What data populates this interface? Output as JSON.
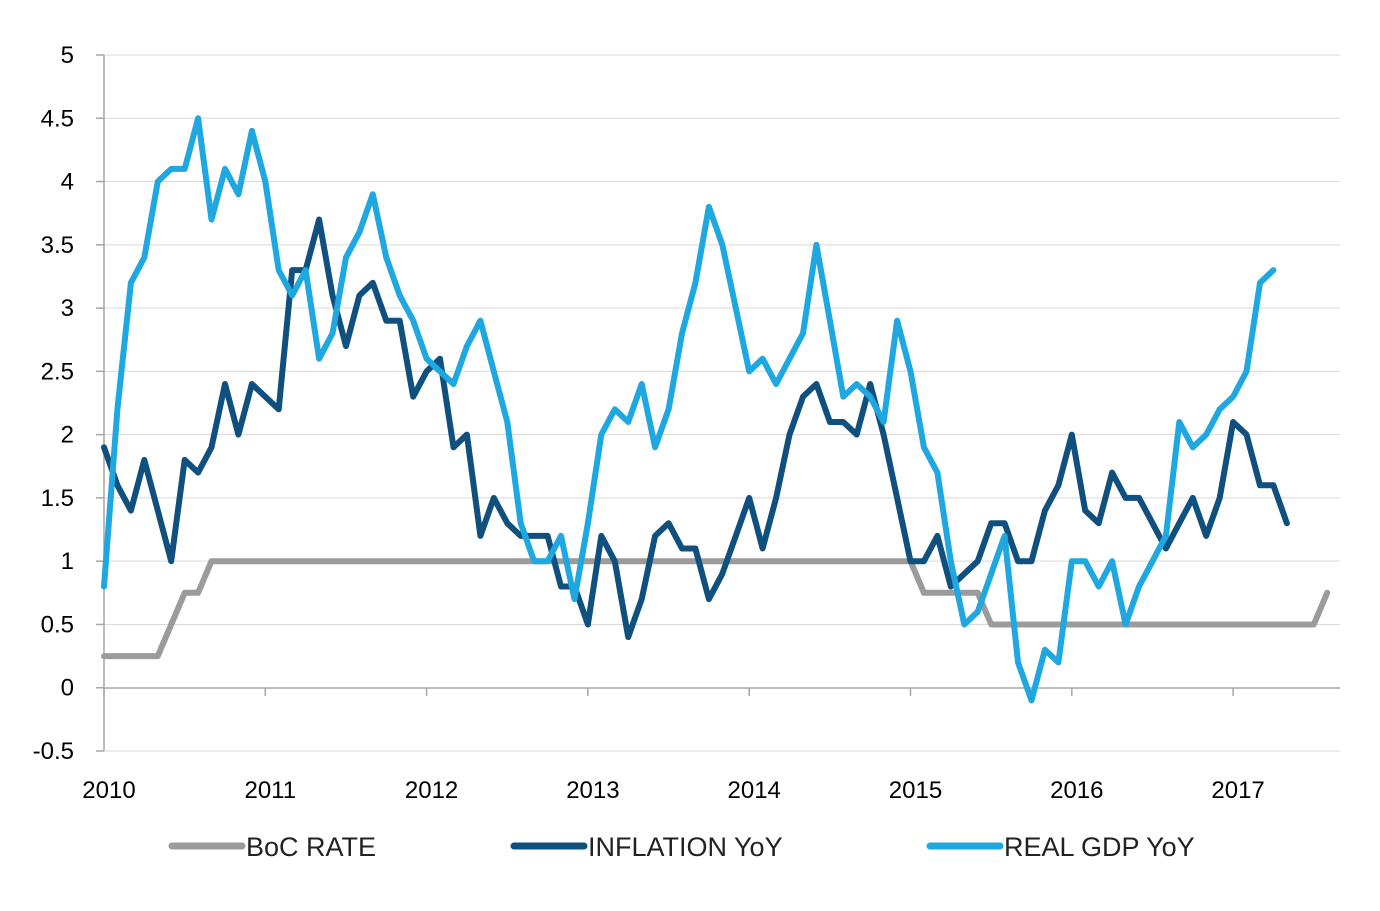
{
  "chart_data": {
    "type": "line",
    "title": "",
    "xlabel": "",
    "ylabel": "",
    "ylim": [
      -0.5,
      5
    ],
    "yticks": [
      "5",
      "4.5",
      "4",
      "3.5",
      "3",
      "2.5",
      "2",
      "1.5",
      "1",
      "0.5",
      "0",
      "-0.5"
    ],
    "xticks": [
      "2010",
      "2011",
      "2012",
      "2013",
      "2014",
      "2015",
      "2016",
      "2017"
    ],
    "grid": "horizontal",
    "legend_position": "bottom",
    "series": [
      {
        "name": "BoC RATE",
        "color": "#9b9b9b",
        "points": [
          [
            "2010-01",
            0.25
          ],
          [
            "2010-02",
            0.25
          ],
          [
            "2010-03",
            0.25
          ],
          [
            "2010-04",
            0.25
          ],
          [
            "2010-05",
            0.25
          ],
          [
            "2010-06",
            0.5
          ],
          [
            "2010-07",
            0.75
          ],
          [
            "2010-08",
            0.75
          ],
          [
            "2010-09",
            1.0
          ],
          [
            "2010-10",
            1.0
          ],
          [
            "2010-11",
            1.0
          ],
          [
            "2010-12",
            1.0
          ],
          [
            "2011-01",
            1.0
          ],
          [
            "2011-06",
            1.0
          ],
          [
            "2012-01",
            1.0
          ],
          [
            "2012-06",
            1.0
          ],
          [
            "2013-01",
            1.0
          ],
          [
            "2013-06",
            1.0
          ],
          [
            "2014-01",
            1.0
          ],
          [
            "2014-06",
            1.0
          ],
          [
            "2014-12",
            1.0
          ],
          [
            "2015-01",
            1.0
          ],
          [
            "2015-02",
            0.75
          ],
          [
            "2015-03",
            0.75
          ],
          [
            "2015-04",
            0.75
          ],
          [
            "2015-05",
            0.75
          ],
          [
            "2015-06",
            0.75
          ],
          [
            "2015-07",
            0.5
          ],
          [
            "2015-08",
            0.5
          ],
          [
            "2015-12",
            0.5
          ],
          [
            "2016-06",
            0.5
          ],
          [
            "2016-12",
            0.5
          ],
          [
            "2017-01",
            0.5
          ],
          [
            "2017-06",
            0.5
          ],
          [
            "2017-07",
            0.5
          ],
          [
            "2017-08",
            0.75
          ]
        ]
      },
      {
        "name": "INFLATION YoY",
        "color": "#10507f",
        "points": [
          [
            "2010-01",
            1.9
          ],
          [
            "2010-02",
            1.6
          ],
          [
            "2010-03",
            1.4
          ],
          [
            "2010-04",
            1.8
          ],
          [
            "2010-05",
            1.4
          ],
          [
            "2010-06",
            1.0
          ],
          [
            "2010-07",
            1.8
          ],
          [
            "2010-08",
            1.7
          ],
          [
            "2010-09",
            1.9
          ],
          [
            "2010-10",
            2.4
          ],
          [
            "2010-11",
            2.0
          ],
          [
            "2010-12",
            2.4
          ],
          [
            "2011-01",
            2.3
          ],
          [
            "2011-02",
            2.2
          ],
          [
            "2011-03",
            3.3
          ],
          [
            "2011-04",
            3.3
          ],
          [
            "2011-05",
            3.7
          ],
          [
            "2011-06",
            3.1
          ],
          [
            "2011-07",
            2.7
          ],
          [
            "2011-08",
            3.1
          ],
          [
            "2011-09",
            3.2
          ],
          [
            "2011-10",
            2.9
          ],
          [
            "2011-11",
            2.9
          ],
          [
            "2011-12",
            2.3
          ],
          [
            "2012-01",
            2.5
          ],
          [
            "2012-02",
            2.6
          ],
          [
            "2012-03",
            1.9
          ],
          [
            "2012-04",
            2.0
          ],
          [
            "2012-05",
            1.2
          ],
          [
            "2012-06",
            1.5
          ],
          [
            "2012-07",
            1.3
          ],
          [
            "2012-08",
            1.2
          ],
          [
            "2012-09",
            1.2
          ],
          [
            "2012-10",
            1.2
          ],
          [
            "2012-11",
            0.8
          ],
          [
            "2012-12",
            0.8
          ],
          [
            "2013-01",
            0.5
          ],
          [
            "2013-02",
            1.2
          ],
          [
            "2013-03",
            1.0
          ],
          [
            "2013-04",
            0.4
          ],
          [
            "2013-05",
            0.7
          ],
          [
            "2013-06",
            1.2
          ],
          [
            "2013-07",
            1.3
          ],
          [
            "2013-08",
            1.1
          ],
          [
            "2013-09",
            1.1
          ],
          [
            "2013-10",
            0.7
          ],
          [
            "2013-11",
            0.9
          ],
          [
            "2013-12",
            1.2
          ],
          [
            "2014-01",
            1.5
          ],
          [
            "2014-02",
            1.1
          ],
          [
            "2014-03",
            1.5
          ],
          [
            "2014-04",
            2.0
          ],
          [
            "2014-05",
            2.3
          ],
          [
            "2014-06",
            2.4
          ],
          [
            "2014-07",
            2.1
          ],
          [
            "2014-08",
            2.1
          ],
          [
            "2014-09",
            2.0
          ],
          [
            "2014-10",
            2.4
          ],
          [
            "2014-11",
            2.0
          ],
          [
            "2014-12",
            1.5
          ],
          [
            "2015-01",
            1.0
          ],
          [
            "2015-02",
            1.0
          ],
          [
            "2015-03",
            1.2
          ],
          [
            "2015-04",
            0.8
          ],
          [
            "2015-05",
            0.9
          ],
          [
            "2015-06",
            1.0
          ],
          [
            "2015-07",
            1.3
          ],
          [
            "2015-08",
            1.3
          ],
          [
            "2015-09",
            1.0
          ],
          [
            "2015-10",
            1.0
          ],
          [
            "2015-11",
            1.4
          ],
          [
            "2015-12",
            1.6
          ],
          [
            "2016-01",
            2.0
          ],
          [
            "2016-02",
            1.4
          ],
          [
            "2016-03",
            1.3
          ],
          [
            "2016-04",
            1.7
          ],
          [
            "2016-05",
            1.5
          ],
          [
            "2016-06",
            1.5
          ],
          [
            "2016-07",
            1.3
          ],
          [
            "2016-08",
            1.1
          ],
          [
            "2016-09",
            1.3
          ],
          [
            "2016-10",
            1.5
          ],
          [
            "2016-11",
            1.2
          ],
          [
            "2016-12",
            1.5
          ],
          [
            "2017-01",
            2.1
          ],
          [
            "2017-02",
            2.0
          ],
          [
            "2017-03",
            1.6
          ],
          [
            "2017-04",
            1.6
          ],
          [
            "2017-05",
            1.3
          ]
        ]
      },
      {
        "name": "REAL GDP YoY",
        "color": "#1ea7e1",
        "points": [
          [
            "2010-01",
            0.8
          ],
          [
            "2010-02",
            2.2
          ],
          [
            "2010-03",
            3.2
          ],
          [
            "2010-04",
            3.4
          ],
          [
            "2010-05",
            4.0
          ],
          [
            "2010-06",
            4.1
          ],
          [
            "2010-07",
            4.1
          ],
          [
            "2010-08",
            4.5
          ],
          [
            "2010-09",
            3.7
          ],
          [
            "2010-10",
            4.1
          ],
          [
            "2010-11",
            3.9
          ],
          [
            "2010-12",
            4.4
          ],
          [
            "2011-01",
            4.0
          ],
          [
            "2011-02",
            3.3
          ],
          [
            "2011-03",
            3.1
          ],
          [
            "2011-04",
            3.3
          ],
          [
            "2011-05",
            2.6
          ],
          [
            "2011-06",
            2.8
          ],
          [
            "2011-07",
            3.4
          ],
          [
            "2011-08",
            3.6
          ],
          [
            "2011-09",
            3.9
          ],
          [
            "2011-10",
            3.4
          ],
          [
            "2011-11",
            3.1
          ],
          [
            "2011-12",
            2.9
          ],
          [
            "2012-01",
            2.6
          ],
          [
            "2012-02",
            2.5
          ],
          [
            "2012-03",
            2.4
          ],
          [
            "2012-04",
            2.7
          ],
          [
            "2012-05",
            2.9
          ],
          [
            "2012-06",
            2.5
          ],
          [
            "2012-07",
            2.1
          ],
          [
            "2012-08",
            1.3
          ],
          [
            "2012-09",
            1.0
          ],
          [
            "2012-10",
            1.0
          ],
          [
            "2012-11",
            1.2
          ],
          [
            "2012-12",
            0.7
          ],
          [
            "2013-01",
            1.3
          ],
          [
            "2013-02",
            2.0
          ],
          [
            "2013-03",
            2.2
          ],
          [
            "2013-04",
            2.1
          ],
          [
            "2013-05",
            2.4
          ],
          [
            "2013-06",
            1.9
          ],
          [
            "2013-07",
            2.2
          ],
          [
            "2013-08",
            2.8
          ],
          [
            "2013-09",
            3.2
          ],
          [
            "2013-10",
            3.8
          ],
          [
            "2013-11",
            3.5
          ],
          [
            "2013-12",
            3.0
          ],
          [
            "2014-01",
            2.5
          ],
          [
            "2014-02",
            2.6
          ],
          [
            "2014-03",
            2.4
          ],
          [
            "2014-04",
            2.6
          ],
          [
            "2014-05",
            2.8
          ],
          [
            "2014-06",
            3.5
          ],
          [
            "2014-07",
            2.9
          ],
          [
            "2014-08",
            2.3
          ],
          [
            "2014-09",
            2.4
          ],
          [
            "2014-10",
            2.3
          ],
          [
            "2014-11",
            2.1
          ],
          [
            "2014-12",
            2.9
          ],
          [
            "2015-01",
            2.5
          ],
          [
            "2015-02",
            1.9
          ],
          [
            "2015-03",
            1.7
          ],
          [
            "2015-04",
            1.0
          ],
          [
            "2015-05",
            0.5
          ],
          [
            "2015-06",
            0.6
          ],
          [
            "2015-07",
            0.9
          ],
          [
            "2015-08",
            1.2
          ],
          [
            "2015-09",
            0.2
          ],
          [
            "2015-10",
            -0.1
          ],
          [
            "2015-11",
            0.3
          ],
          [
            "2015-12",
            0.2
          ],
          [
            "2016-01",
            1.0
          ],
          [
            "2016-02",
            1.0
          ],
          [
            "2016-03",
            0.8
          ],
          [
            "2016-04",
            1.0
          ],
          [
            "2016-05",
            0.5
          ],
          [
            "2016-06",
            0.8
          ],
          [
            "2016-07",
            1.0
          ],
          [
            "2016-08",
            1.2
          ],
          [
            "2016-09",
            2.1
          ],
          [
            "2016-10",
            1.9
          ],
          [
            "2016-11",
            2.0
          ],
          [
            "2016-12",
            2.2
          ],
          [
            "2017-01",
            2.3
          ],
          [
            "2017-02",
            2.5
          ],
          [
            "2017-03",
            3.2
          ],
          [
            "2017-04",
            3.3
          ]
        ]
      }
    ]
  }
}
